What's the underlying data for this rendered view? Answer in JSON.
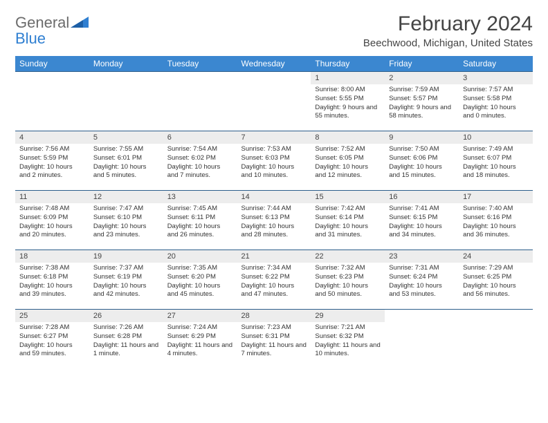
{
  "brand": {
    "part1": "General",
    "part2": "Blue"
  },
  "title": "February 2024",
  "location": "Beechwood, Michigan, United States",
  "colors": {
    "header_bg": "#3b87d0",
    "header_text": "#ffffff",
    "row_border": "#2b5d8a",
    "daynum_bg": "#ededed",
    "text": "#333333",
    "logo_gray": "#6b6b6b",
    "logo_blue": "#2f7fd1"
  },
  "daysOfWeek": [
    "Sunday",
    "Monday",
    "Tuesday",
    "Wednesday",
    "Thursday",
    "Friday",
    "Saturday"
  ],
  "weeks": [
    [
      null,
      null,
      null,
      null,
      {
        "n": "1",
        "sunrise": "8:00 AM",
        "sunset": "5:55 PM",
        "daylight": "9 hours and 55 minutes."
      },
      {
        "n": "2",
        "sunrise": "7:59 AM",
        "sunset": "5:57 PM",
        "daylight": "9 hours and 58 minutes."
      },
      {
        "n": "3",
        "sunrise": "7:57 AM",
        "sunset": "5:58 PM",
        "daylight": "10 hours and 0 minutes."
      }
    ],
    [
      {
        "n": "4",
        "sunrise": "7:56 AM",
        "sunset": "5:59 PM",
        "daylight": "10 hours and 2 minutes."
      },
      {
        "n": "5",
        "sunrise": "7:55 AM",
        "sunset": "6:01 PM",
        "daylight": "10 hours and 5 minutes."
      },
      {
        "n": "6",
        "sunrise": "7:54 AM",
        "sunset": "6:02 PM",
        "daylight": "10 hours and 7 minutes."
      },
      {
        "n": "7",
        "sunrise": "7:53 AM",
        "sunset": "6:03 PM",
        "daylight": "10 hours and 10 minutes."
      },
      {
        "n": "8",
        "sunrise": "7:52 AM",
        "sunset": "6:05 PM",
        "daylight": "10 hours and 12 minutes."
      },
      {
        "n": "9",
        "sunrise": "7:50 AM",
        "sunset": "6:06 PM",
        "daylight": "10 hours and 15 minutes."
      },
      {
        "n": "10",
        "sunrise": "7:49 AM",
        "sunset": "6:07 PM",
        "daylight": "10 hours and 18 minutes."
      }
    ],
    [
      {
        "n": "11",
        "sunrise": "7:48 AM",
        "sunset": "6:09 PM",
        "daylight": "10 hours and 20 minutes."
      },
      {
        "n": "12",
        "sunrise": "7:47 AM",
        "sunset": "6:10 PM",
        "daylight": "10 hours and 23 minutes."
      },
      {
        "n": "13",
        "sunrise": "7:45 AM",
        "sunset": "6:11 PM",
        "daylight": "10 hours and 26 minutes."
      },
      {
        "n": "14",
        "sunrise": "7:44 AM",
        "sunset": "6:13 PM",
        "daylight": "10 hours and 28 minutes."
      },
      {
        "n": "15",
        "sunrise": "7:42 AM",
        "sunset": "6:14 PM",
        "daylight": "10 hours and 31 minutes."
      },
      {
        "n": "16",
        "sunrise": "7:41 AM",
        "sunset": "6:15 PM",
        "daylight": "10 hours and 34 minutes."
      },
      {
        "n": "17",
        "sunrise": "7:40 AM",
        "sunset": "6:16 PM",
        "daylight": "10 hours and 36 minutes."
      }
    ],
    [
      {
        "n": "18",
        "sunrise": "7:38 AM",
        "sunset": "6:18 PM",
        "daylight": "10 hours and 39 minutes."
      },
      {
        "n": "19",
        "sunrise": "7:37 AM",
        "sunset": "6:19 PM",
        "daylight": "10 hours and 42 minutes."
      },
      {
        "n": "20",
        "sunrise": "7:35 AM",
        "sunset": "6:20 PM",
        "daylight": "10 hours and 45 minutes."
      },
      {
        "n": "21",
        "sunrise": "7:34 AM",
        "sunset": "6:22 PM",
        "daylight": "10 hours and 47 minutes."
      },
      {
        "n": "22",
        "sunrise": "7:32 AM",
        "sunset": "6:23 PM",
        "daylight": "10 hours and 50 minutes."
      },
      {
        "n": "23",
        "sunrise": "7:31 AM",
        "sunset": "6:24 PM",
        "daylight": "10 hours and 53 minutes."
      },
      {
        "n": "24",
        "sunrise": "7:29 AM",
        "sunset": "6:25 PM",
        "daylight": "10 hours and 56 minutes."
      }
    ],
    [
      {
        "n": "25",
        "sunrise": "7:28 AM",
        "sunset": "6:27 PM",
        "daylight": "10 hours and 59 minutes."
      },
      {
        "n": "26",
        "sunrise": "7:26 AM",
        "sunset": "6:28 PM",
        "daylight": "11 hours and 1 minute."
      },
      {
        "n": "27",
        "sunrise": "7:24 AM",
        "sunset": "6:29 PM",
        "daylight": "11 hours and 4 minutes."
      },
      {
        "n": "28",
        "sunrise": "7:23 AM",
        "sunset": "6:31 PM",
        "daylight": "11 hours and 7 minutes."
      },
      {
        "n": "29",
        "sunrise": "7:21 AM",
        "sunset": "6:32 PM",
        "daylight": "11 hours and 10 minutes."
      },
      null,
      null
    ]
  ],
  "labels": {
    "sunrise": "Sunrise:",
    "sunset": "Sunset:",
    "daylight": "Daylight:"
  }
}
